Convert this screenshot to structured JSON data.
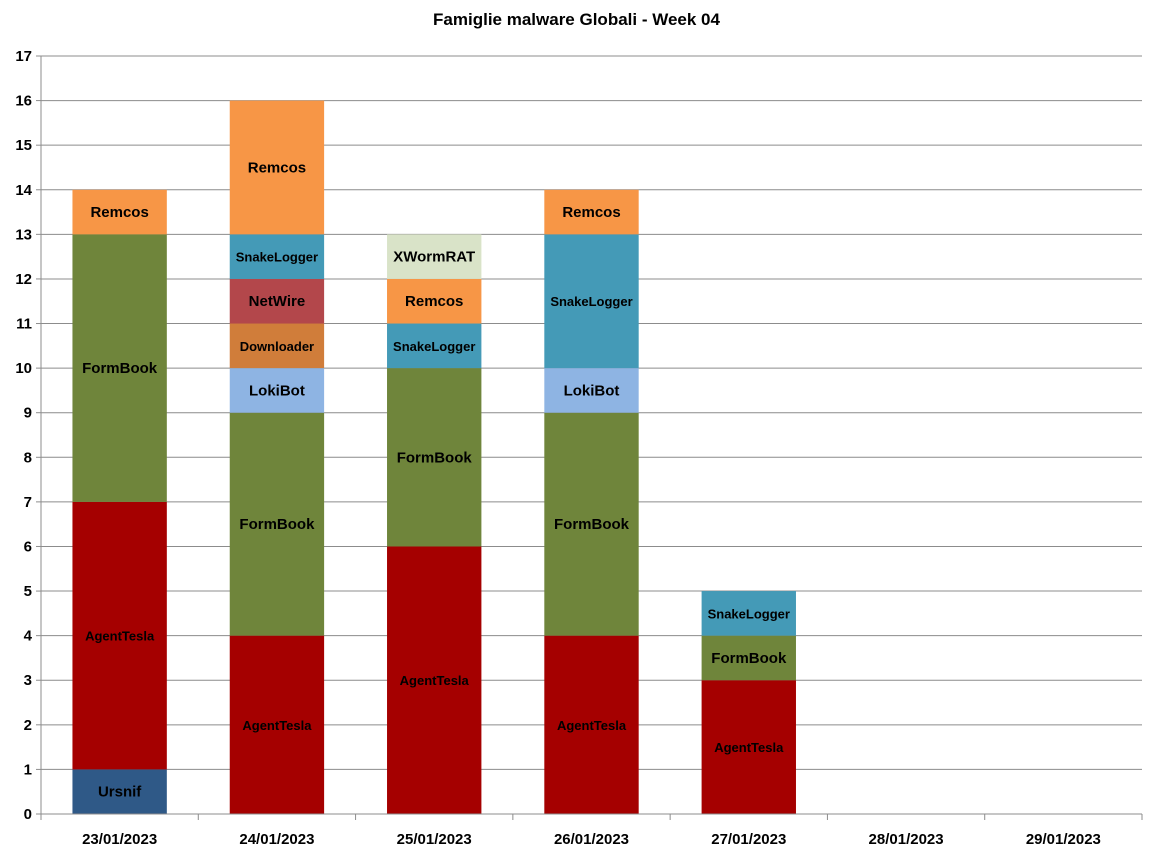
{
  "chart_data": {
    "type": "bar",
    "stacked": true,
    "title": "Famiglie malware Globali - Week 04",
    "xlabel": "",
    "ylabel": "",
    "ylim": [
      0,
      17
    ],
    "yticks": [
      0,
      1,
      2,
      3,
      4,
      5,
      6,
      7,
      8,
      9,
      10,
      11,
      12,
      13,
      14,
      15,
      16,
      17
    ],
    "grid": true,
    "categories": [
      "23/01/2023",
      "24/01/2023",
      "25/01/2023",
      "26/01/2023",
      "27/01/2023",
      "28/01/2023",
      "29/01/2023"
    ],
    "colors": {
      "Ursnif": "#2f5987",
      "AgentTesla": "#a50000",
      "FormBook": "#6f853b",
      "LokiBot": "#8eb4e3",
      "Downloader": "#d07d3a",
      "NetWire": "#b3474b",
      "SnakeLogger": "#449ab7",
      "Remcos": "#f79646",
      "XWormRAT": "#d9e3c8"
    },
    "stacks": [
      [
        {
          "name": "Ursnif",
          "value": 1
        },
        {
          "name": "AgentTesla",
          "value": 6
        },
        {
          "name": "FormBook",
          "value": 6
        },
        {
          "name": "Remcos",
          "value": 1
        }
      ],
      [
        {
          "name": "AgentTesla",
          "value": 4
        },
        {
          "name": "FormBook",
          "value": 5
        },
        {
          "name": "LokiBot",
          "value": 1
        },
        {
          "name": "Downloader",
          "value": 1
        },
        {
          "name": "NetWire",
          "value": 1
        },
        {
          "name": "SnakeLogger",
          "value": 1
        },
        {
          "name": "Remcos",
          "value": 3
        }
      ],
      [
        {
          "name": "AgentTesla",
          "value": 6
        },
        {
          "name": "FormBook",
          "value": 4
        },
        {
          "name": "SnakeLogger",
          "value": 1
        },
        {
          "name": "Remcos",
          "value": 1
        },
        {
          "name": "XWormRAT",
          "value": 1
        }
      ],
      [
        {
          "name": "AgentTesla",
          "value": 4
        },
        {
          "name": "FormBook",
          "value": 5
        },
        {
          "name": "LokiBot",
          "value": 1
        },
        {
          "name": "SnakeLogger",
          "value": 3
        },
        {
          "name": "Remcos",
          "value": 1
        }
      ],
      [
        {
          "name": "AgentTesla",
          "value": 3
        },
        {
          "name": "FormBook",
          "value": 1
        },
        {
          "name": "SnakeLogger",
          "value": 1
        }
      ],
      [],
      []
    ]
  }
}
